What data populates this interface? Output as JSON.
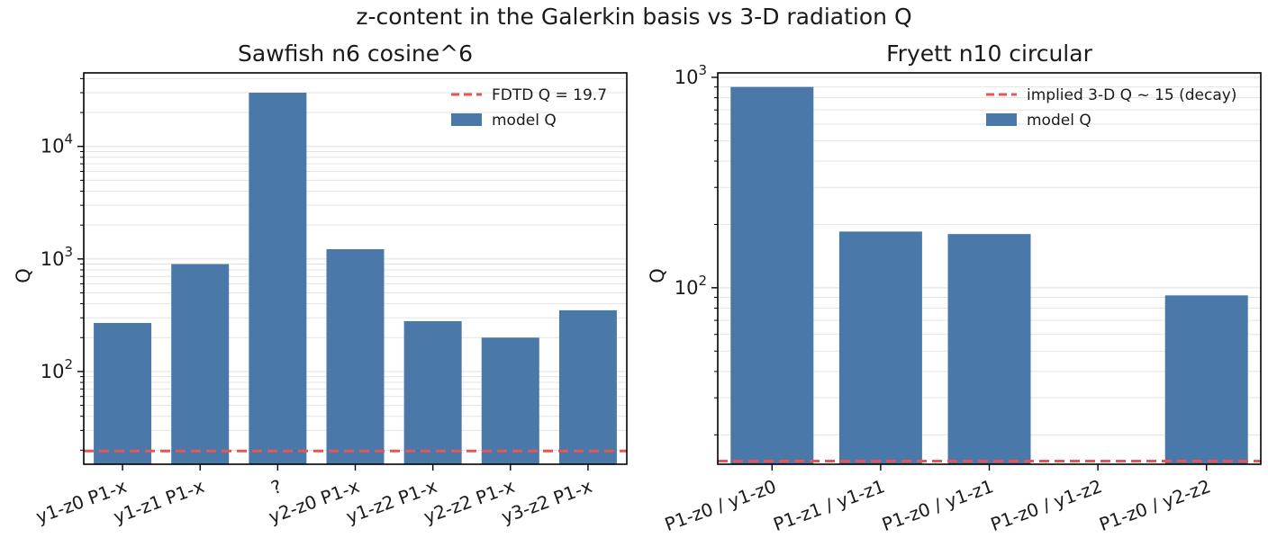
{
  "figure": {
    "suptitle": "z-content in the Galerkin basis vs 3-D radiation Q"
  },
  "colors": {
    "bar": "#4a78a8",
    "reference_line": "#e45756",
    "grid": "#e3e3e3",
    "axis": "#000000"
  },
  "chart_data": [
    {
      "type": "bar",
      "title": "Sawfish n6 cosine^6",
      "xlabel": "",
      "ylabel": "Q",
      "yscale": "log",
      "ylim": [
        15,
        45000
      ],
      "grid": "y-major-and-minor",
      "legend_position": "top-right",
      "tick_label_rotation": 20,
      "categories": [
        "y1-z0 P1-x",
        "y1-z1 P1-x",
        "?",
        "y2-z0 P1-x",
        "y1-z2 P1-x",
        "y2-z2 P1-x",
        "y3-z2 P1-x"
      ],
      "series": [
        {
          "name": "model Q",
          "values": [
            270,
            900,
            30000,
            1220,
            280,
            200,
            350
          ]
        }
      ],
      "reference_line": {
        "label": "FDTD Q = 19.7",
        "value": 19.7,
        "style": "dashed"
      },
      "yticks": [
        {
          "value": 100,
          "base": "10",
          "exp": "2"
        },
        {
          "value": 1000,
          "base": "10",
          "exp": "3"
        },
        {
          "value": 10000,
          "base": "10",
          "exp": "4"
        }
      ]
    },
    {
      "type": "bar",
      "title": "Fryett n10 circular",
      "xlabel": "",
      "ylabel": "Q",
      "yscale": "log",
      "ylim": [
        14.5,
        1050
      ],
      "grid": "y-major-and-minor",
      "legend_position": "top-right",
      "tick_label_rotation": 20,
      "categories": [
        "P1-z0 / y1-z0",
        "P1-z1 / y1-z1",
        "P1-z0 / y1-z1",
        "P1-z0 / y1-z2",
        "P1-z0 / y2-z2"
      ],
      "series": [
        {
          "name": "model Q",
          "values": [
            900,
            185,
            180,
            null,
            92
          ]
        }
      ],
      "reference_line": {
        "label": "implied 3-D Q ~ 15 (decay)",
        "value": 15,
        "style": "dashed"
      },
      "yticks": [
        {
          "value": 100,
          "base": "10",
          "exp": "2"
        },
        {
          "value": 1000,
          "base": "10",
          "exp": "3"
        }
      ]
    }
  ]
}
